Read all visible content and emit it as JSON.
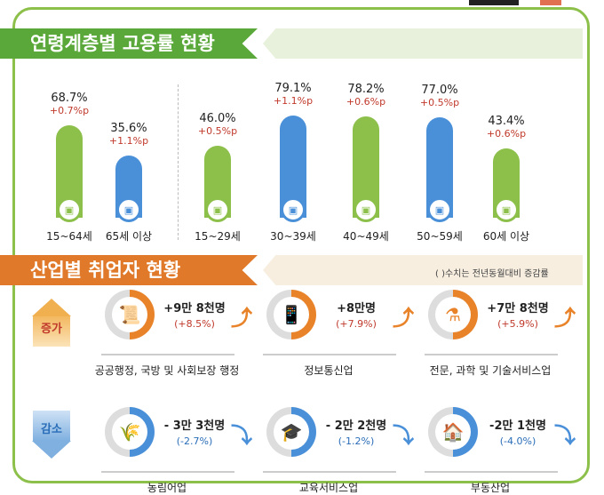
{
  "colors": {
    "green": "#8cc04a",
    "blue": "#4a90d9",
    "orange": "#e8832a",
    "red": "#c0392b"
  },
  "section1": {
    "title": "연령계층별 고용률 현황",
    "groups": [
      {
        "label": "15~64세",
        "value": "68.7%",
        "change": "+0.7%p",
        "rate": 68.7,
        "color": "green"
      },
      {
        "label": "65세 이상",
        "value": "35.6%",
        "change": "+1.1%p",
        "rate": 35.6,
        "color": "blue"
      },
      {
        "label": "15~29세",
        "value": "46.0%",
        "change": "+0.5%p",
        "rate": 46.0,
        "color": "green"
      },
      {
        "label": "30~39세",
        "value": "79.1%",
        "change": "+1.1%p",
        "rate": 79.1,
        "color": "blue"
      },
      {
        "label": "40~49세",
        "value": "78.2%",
        "change": "+0.6%p",
        "rate": 78.2,
        "color": "green"
      },
      {
        "label": "50~59세",
        "value": "77.0%",
        "change": "+0.5%p",
        "rate": 77.0,
        "color": "blue"
      },
      {
        "label": "60세 이상",
        "value": "43.4%",
        "change": "+0.6%p",
        "rate": 43.4,
        "color": "green"
      }
    ]
  },
  "section2": {
    "title": "산업별 취업자 현황",
    "note": "( )수치는 전년동월대비 증감률",
    "increase_label": "증가",
    "decrease_label": "감소",
    "increase": [
      {
        "name": "공공행정, 국방 및 사회보장 행정",
        "amount": "+9만 8천명",
        "pct": "(+8.5%)",
        "icon": "scroll-icon"
      },
      {
        "name": "정보통신업",
        "amount": "+8만명",
        "pct": "(+7.9%)",
        "icon": "phone-icon"
      },
      {
        "name": "전문, 과학 및 기술서비스업",
        "amount": "+7만 8천명",
        "pct": "(+5.9%)",
        "icon": "flask-icon"
      }
    ],
    "decrease": [
      {
        "name": "농림어업",
        "amount": "- 3만 3천명",
        "pct": "(-2.7%)",
        "icon": "wheat-icon"
      },
      {
        "name": "교육서비스업",
        "amount": "- 2만 2천명",
        "pct": "(-1.2%)",
        "icon": "graduation-cap-icon"
      },
      {
        "name": "부동산업",
        "amount": "-2만 1천명",
        "pct": "(-4.0%)",
        "icon": "house-won-icon"
      }
    ]
  }
}
